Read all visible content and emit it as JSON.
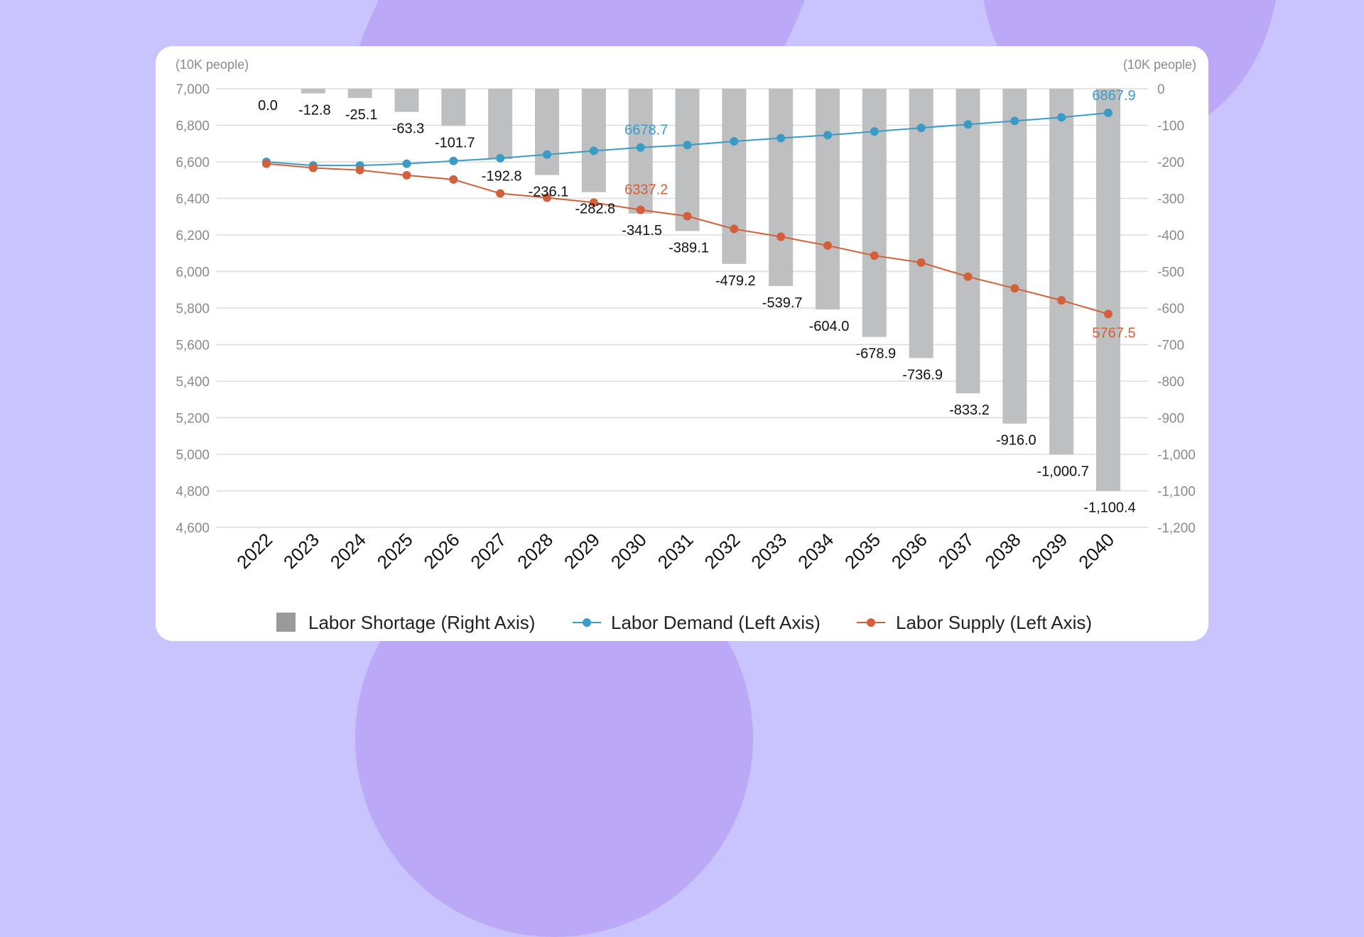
{
  "chart_data": {
    "type": "bar+line",
    "left_axis_unit": "(10K people)",
    "right_axis_unit": "(10K people)",
    "left_ylim": [
      4600,
      7000
    ],
    "left_ticks": [
      "7,000",
      "6,800",
      "6,600",
      "6,400",
      "6,200",
      "6,000",
      "5,800",
      "5,600",
      "5,400",
      "5,200",
      "5,000",
      "4,800",
      "4,600"
    ],
    "right_ylim": [
      -1200,
      0
    ],
    "right_ticks": [
      "0",
      "-100",
      "-200",
      "-300",
      "-400",
      "-500",
      "-600",
      "-700",
      "-800",
      "-900",
      "-1,000",
      "-1,100",
      "-1,200"
    ],
    "grid": true,
    "legend_placement": "bottom",
    "categories": [
      "2022",
      "2023",
      "2024",
      "2025",
      "2026",
      "2027",
      "2028",
      "2029",
      "2030",
      "2031",
      "2032",
      "2033",
      "2034",
      "2035",
      "2036",
      "2037",
      "2038",
      "2039",
      "2040"
    ],
    "series": [
      {
        "name": "Labor Shortage (Right Axis)",
        "type": "bar",
        "axis": "right",
        "color": "#bebfc0",
        "legend_color": "#9a9a9a",
        "values": [
          0.0,
          -12.8,
          -25.1,
          -63.3,
          -101.7,
          -192.8,
          -236.1,
          -282.8,
          -341.5,
          -389.1,
          -479.2,
          -539.7,
          -604.0,
          -678.9,
          -736.9,
          -833.2,
          -916.0,
          -1000.7,
          -1100.4
        ],
        "labels": [
          "0.0",
          "-12.8",
          "-25.1",
          "-63.3",
          "-101.7",
          "-192.8",
          "-236.1",
          "-282.8",
          "-341.5",
          "-389.1",
          "-479.2",
          "-539.7",
          "-604.0",
          "-678.9",
          "-736.9",
          "-833.2",
          "-916.0",
          "-1,000.7",
          "-1,100.4"
        ]
      },
      {
        "name": "Labor Demand (Left Axis)",
        "type": "line",
        "axis": "left",
        "color": "#3a9cc6",
        "values": [
          6600,
          6580,
          6580,
          6590,
          6605,
          6620,
          6640,
          6660,
          6678.7,
          6692,
          6712,
          6730,
          6746,
          6766,
          6786,
          6805,
          6824,
          6843,
          6867.9
        ],
        "labels": {
          "8": "6678.7",
          "18": "6867.9"
        }
      },
      {
        "name": "Labor Supply (Left Axis)",
        "type": "line",
        "axis": "left",
        "color": "#d3603a",
        "values": [
          6590,
          6567.2,
          6554.9,
          6526.7,
          6503.3,
          6427.2,
          6403.9,
          6377.2,
          6337.2,
          6302.9,
          6232.8,
          6190.3,
          6142,
          6087.1,
          6049.1,
          5971.8,
          5908,
          5842.3,
          5767.5
        ],
        "labels": {
          "8": "6337.2",
          "18": "5767.5"
        }
      }
    ]
  }
}
